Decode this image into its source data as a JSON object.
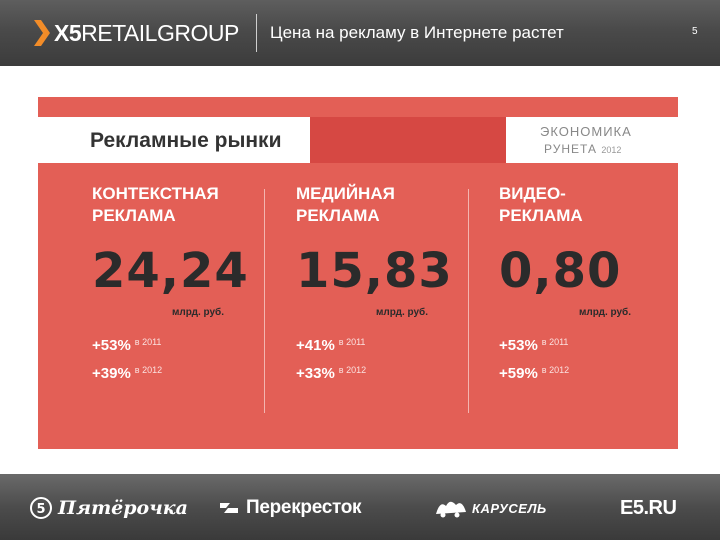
{
  "header": {
    "logo_bold": "X5",
    "logo_mid": "RETAIL",
    "logo_thin": "GROUP",
    "title": "Цена на рекламу в Интернете растет",
    "page_number": "5"
  },
  "card": {
    "title": "Рекламные рынки",
    "ebook_line1": "ЭКОНОМИКА",
    "ebook_line2": "РУНЕТА",
    "ebook_year": "2012",
    "columns": [
      {
        "heading_line1": "КОНТЕКСТНАЯ",
        "heading_line2": "РЕКЛАМА",
        "value": "24,24",
        "unit": "млрд. руб.",
        "stats": [
          {
            "pct": "+53%",
            "year": "в 2011"
          },
          {
            "pct": "+39%",
            "year": "в 2012"
          }
        ]
      },
      {
        "heading_line1": "МЕДИЙНАЯ",
        "heading_line2": "РЕКЛАМА",
        "value": "15,83",
        "unit": "млрд. руб.",
        "stats": [
          {
            "pct": "+41%",
            "year": "в 2011"
          },
          {
            "pct": "+33%",
            "year": "в 2012"
          }
        ]
      },
      {
        "heading_line1": "ВИДЕО-",
        "heading_line2": "РЕКЛАМА",
        "value": "0,80",
        "unit": "млрд. руб.",
        "stats": [
          {
            "pct": "+53%",
            "year": "в 2011"
          },
          {
            "pct": "+59%",
            "year": "в 2012"
          }
        ]
      }
    ]
  },
  "footer": {
    "brands": [
      {
        "name": "Пятёрочка",
        "icon": "pyaterochka-logo-icon"
      },
      {
        "name": "Перекресток",
        "icon": "perekrestok-logo-icon"
      },
      {
        "name": "КАРУСЕЛЬ",
        "icon": "karusel-logo-icon"
      },
      {
        "name": "E5.RU",
        "icon": "e5-logo-icon"
      }
    ]
  },
  "colors": {
    "header_bg": "#4a4a4a",
    "card_red": "#e35f56",
    "card_red_dark": "#d64843",
    "value_text": "#2b2b2b",
    "brand_orange": "#f28c28"
  }
}
